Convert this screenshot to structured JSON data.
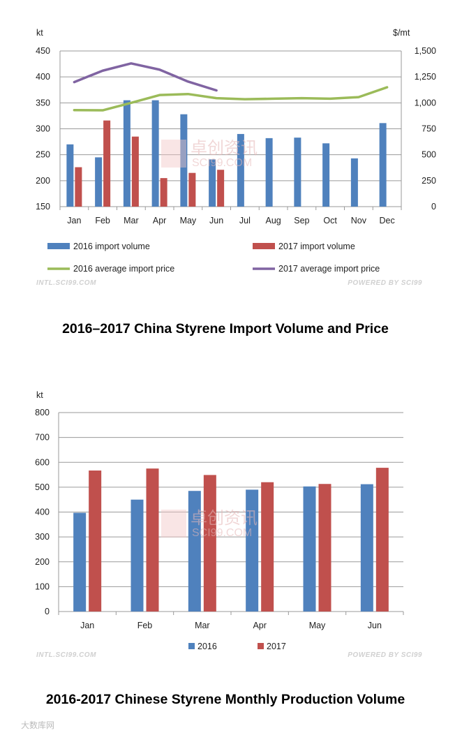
{
  "colors": {
    "series_2016_bar": "#4f81bd",
    "series_2017_bar": "#c0504d",
    "series_2016_line": "#9bbb59",
    "series_2017_line": "#8064a2",
    "grid": "#9a9a9a"
  },
  "chart_data": [
    {
      "type": "bar",
      "combo_with": "line",
      "title": "2016–2017 China Styrene Import Volume and Price",
      "y_unit": "kt",
      "y2_unit": "$/mt",
      "categories": [
        "Jan",
        "Feb",
        "Mar",
        "Apr",
        "May",
        "Jun",
        "Jul",
        "Aug",
        "Sep",
        "Oct",
        "Nov",
        "Dec"
      ],
      "ylim": [
        150,
        450
      ],
      "yticks": [
        "150",
        "200",
        "250",
        "300",
        "350",
        "400",
        "450"
      ],
      "y2lim": [
        0,
        1500
      ],
      "y2ticks": [
        "0",
        "250",
        "500",
        "750",
        "1,000",
        "1,250",
        "1,500"
      ],
      "grid": true,
      "legend_position": "bottom",
      "series": [
        {
          "name": "2016 import volume",
          "kind": "bar",
          "axis": "left",
          "values": [
            270,
            245,
            355,
            355,
            328,
            241,
            290,
            282,
            283,
            272,
            243,
            311
          ]
        },
        {
          "name": "2017 import volume",
          "kind": "bar",
          "axis": "left",
          "values": [
            226,
            316,
            285,
            205,
            215,
            221,
            null,
            null,
            null,
            null,
            null,
            null
          ]
        },
        {
          "name": "2016 average import price",
          "kind": "line",
          "axis": "right",
          "values": [
            930,
            928,
            1000,
            1075,
            1085,
            1045,
            1035,
            1040,
            1045,
            1040,
            1055,
            1150
          ]
        },
        {
          "name": "2017 average import price",
          "kind": "line",
          "axis": "right",
          "values": [
            1200,
            1310,
            1380,
            1320,
            1205,
            1120,
            null,
            null,
            null,
            null,
            null,
            null
          ]
        }
      ],
      "footer_left": "INTL.SCI99.COM",
      "footer_right": "POWERED BY SCI99"
    },
    {
      "type": "bar",
      "title": "2016-2017 Chinese Styrene Monthly Production Volume",
      "y_unit": "kt",
      "categories": [
        "Jan",
        "Feb",
        "Mar",
        "Apr",
        "May",
        "Jun"
      ],
      "ylim": [
        0,
        800
      ],
      "yticks": [
        "0",
        "100",
        "200",
        "300",
        "400",
        "500",
        "600",
        "700",
        "800"
      ],
      "grid": true,
      "legend_position": "bottom",
      "series": [
        {
          "name": "2016",
          "values": [
            397,
            450,
            485,
            490,
            503,
            512
          ]
        },
        {
          "name": "2017",
          "values": [
            567,
            575,
            549,
            520,
            513,
            578
          ]
        }
      ],
      "footer_left": "INTL.SCI99.COM",
      "footer_right": "POWERED BY SCI99"
    }
  ],
  "watermark": {
    "line1": "卓创资讯",
    "line2": "SCI99.COM"
  },
  "corner_mark": "大数库网"
}
